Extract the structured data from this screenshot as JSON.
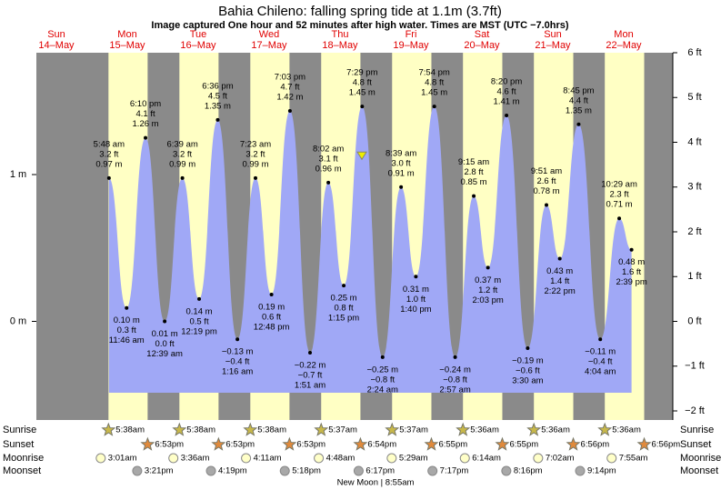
{
  "chart_data": {
    "type": "tide",
    "title": "Bahia Chileno: falling  spring tide at 1.1m (3.7ft)",
    "subtitle": "Image captured One hour and 52 minutes after high water. Times are MST (UTC −7.0hrs)",
    "ylim": [
      -2,
      6
    ],
    "yticks": [
      {
        "value": 6,
        "label": "6 ft"
      },
      {
        "value": 5,
        "label": "5 ft"
      },
      {
        "value": 4,
        "label": "4 ft"
      },
      {
        "value": 3,
        "label": "3 ft"
      },
      {
        "value": 2,
        "label": "2 ft"
      },
      {
        "value": 1,
        "label": "1 ft"
      },
      {
        "value": 0,
        "label": "0 ft"
      },
      {
        "value": -1,
        "label": "−1 ft"
      },
      {
        "value": -2,
        "label": "−2 ft"
      }
    ],
    "y2lim": [
      -0.61,
      1.83
    ],
    "y2ticks": [
      {
        "value": 1,
        "label": "1 m"
      },
      {
        "value": 0,
        "label": "0 m"
      }
    ],
    "current_ft": 3.7,
    "colors": {
      "tide": "#a0a8f6",
      "day": "#ffffc4",
      "night": "#8a8a8a",
      "weekday": "#e00000"
    },
    "row_labels": {
      "sunrise": "Sunrise",
      "sunset": "Sunset",
      "moonrise": "Moonrise",
      "moonset": "Moonset"
    },
    "moon_phase": "New Moon | 8:55am",
    "moon_phase_day": 5,
    "days": [
      {
        "weekday": "Sun",
        "date": "14–May"
      },
      {
        "weekday": "Mon",
        "date": "15–May",
        "sunrise": "5:38am",
        "sunset": "6:53pm",
        "moonrise": "3:01am",
        "moonset": "3:21pm",
        "tides": {
          "times": [
            "5:48 am",
            "11:46 am",
            "6:10 pm"
          ],
          "values": [
            3.2,
            0.3,
            4.1
          ],
          "value_labels": [
            "3.2 ft",
            "0.3 ft",
            "4.1 ft"
          ],
          "meters": [
            0.97,
            0.1,
            1.26
          ],
          "meter_labels": [
            "0.97 m",
            "0.10 m",
            "1.26 m"
          ]
        }
      },
      {
        "weekday": "Tue",
        "date": "16–May",
        "sunrise": "5:38am",
        "sunset": "6:53pm",
        "moonrise": "3:36am",
        "moonset": "4:19pm",
        "tides": {
          "times": [
            "12:39 am",
            "6:39 am",
            "12:19 pm",
            "6:36 pm"
          ],
          "values": [
            0.0,
            3.2,
            0.5,
            4.5
          ],
          "value_labels": [
            "0.0 ft",
            "3.2 ft",
            "0.5 ft",
            "4.5 ft"
          ],
          "meters": [
            0.01,
            0.99,
            0.14,
            1.35
          ],
          "meter_labels": [
            "0.01 m",
            "0.99 m",
            "0.14 m",
            "1.35 m"
          ]
        }
      },
      {
        "weekday": "Wed",
        "date": "17–May",
        "sunrise": "5:38am",
        "sunset": "6:53pm",
        "moonrise": "4:11am",
        "moonset": "5:18pm",
        "tides": {
          "times": [
            "1:16 am",
            "7:23 am",
            "12:48 pm",
            "7:03 pm"
          ],
          "values": [
            -0.4,
            3.2,
            0.6,
            4.7
          ],
          "value_labels": [
            "−0.4 ft",
            "3.2 ft",
            "0.6 ft",
            "4.7 ft"
          ],
          "meters": [
            -0.13,
            0.99,
            0.19,
            1.42
          ],
          "meter_labels": [
            "−0.13 m",
            "0.99 m",
            "0.19 m",
            "1.42 m"
          ]
        }
      },
      {
        "weekday": "Thu",
        "date": "18–May",
        "sunrise": "5:37am",
        "sunset": "6:54pm",
        "moonrise": "4:48am",
        "moonset": "6:17pm",
        "tides": {
          "times": [
            "1:51 am",
            "8:02 am",
            "1:15 pm",
            "7:29 pm"
          ],
          "values": [
            -0.7,
            3.1,
            0.8,
            4.8
          ],
          "value_labels": [
            "−0.7 ft",
            "3.1 ft",
            "0.8 ft",
            "4.8 ft"
          ],
          "meters": [
            -0.22,
            0.96,
            0.25,
            1.45
          ],
          "meter_labels": [
            "−0.22 m",
            "0.96 m",
            "0.25 m",
            "1.45 m"
          ]
        }
      },
      {
        "weekday": "Fri",
        "date": "19–May",
        "sunrise": "5:37am",
        "sunset": "6:55pm",
        "moonrise": "5:29am",
        "moonset": "7:17pm",
        "tides": {
          "times": [
            "2:24 am",
            "8:39 am",
            "1:40 pm",
            "7:54 pm"
          ],
          "values": [
            -0.8,
            3.0,
            1.0,
            4.8
          ],
          "value_labels": [
            "−0.8 ft",
            "3.0 ft",
            "1.0 ft",
            "4.8 ft"
          ],
          "meters": [
            -0.25,
            0.91,
            0.31,
            1.45
          ],
          "meter_labels": [
            "−0.25 m",
            "0.91 m",
            "0.31 m",
            "1.45 m"
          ]
        }
      },
      {
        "weekday": "Sat",
        "date": "20–May",
        "sunrise": "5:36am",
        "sunset": "6:55pm",
        "moonrise": "6:14am",
        "moonset": "8:16pm",
        "tides": {
          "times": [
            "2:57 am",
            "9:15 am",
            "2:03 pm",
            "8:20 pm"
          ],
          "values": [
            -0.8,
            2.8,
            1.2,
            4.6
          ],
          "value_labels": [
            "−0.8 ft",
            "2.8 ft",
            "1.2 ft",
            "4.6 ft"
          ],
          "meters": [
            -0.24,
            0.85,
            0.37,
            1.41
          ],
          "meter_labels": [
            "−0.24 m",
            "0.85 m",
            "0.37 m",
            "1.41 m"
          ]
        }
      },
      {
        "weekday": "Sun",
        "date": "21–May",
        "sunrise": "5:36am",
        "sunset": "6:56pm",
        "moonrise": "7:02am",
        "moonset": "9:14pm",
        "tides": {
          "times": [
            "3:30 am",
            "9:51 am",
            "2:22 pm",
            "8:45 pm"
          ],
          "values": [
            -0.6,
            2.6,
            1.4,
            4.4
          ],
          "value_labels": [
            "−0.6 ft",
            "2.6 ft",
            "1.4 ft",
            "4.4 ft"
          ],
          "meters": [
            -0.19,
            0.78,
            0.43,
            1.35
          ],
          "meter_labels": [
            "−0.19 m",
            "0.78 m",
            "0.43 m",
            "1.35 m"
          ]
        }
      },
      {
        "weekday": "Mon",
        "date": "22–May",
        "sunrise": "5:36am",
        "sunset": "6:56pm",
        "moonrise": "7:55am",
        "tides": {
          "times": [
            "4:04 am",
            "10:29 am",
            "2:39 pm"
          ],
          "values": [
            -0.4,
            2.3,
            1.6
          ],
          "value_labels": [
            "−0.4 ft",
            "2.3 ft",
            "1.6 ft"
          ],
          "meters": [
            -0.11,
            0.71,
            0.48
          ],
          "meter_labels": [
            "−0.11 m",
            "0.71 m",
            "0.48 m"
          ]
        }
      }
    ]
  }
}
